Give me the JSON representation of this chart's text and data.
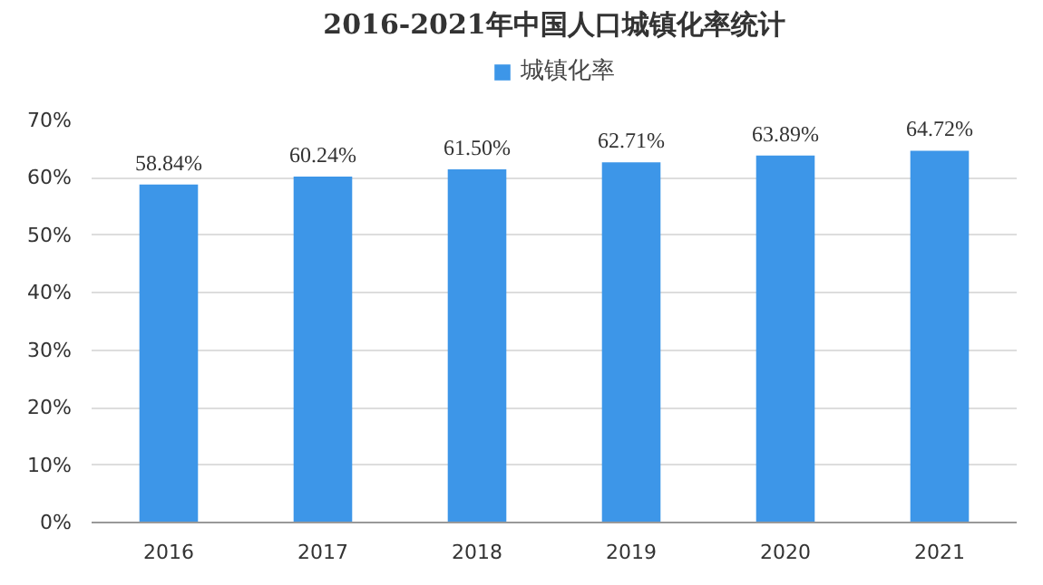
{
  "chart_data": {
    "type": "bar",
    "title": "2016-2021年中国人口城镇化率统计",
    "categories": [
      "2016",
      "2017",
      "2018",
      "2019",
      "2020",
      "2021"
    ],
    "series": [
      {
        "name": "城镇化率",
        "color": "#3d96e8",
        "values": [
          58.84,
          60.24,
          61.5,
          62.71,
          63.89,
          64.72
        ],
        "value_labels": [
          "58.84%",
          "60.24%",
          "61.50%",
          "62.71%",
          "63.89%",
          "64.72%"
        ]
      }
    ],
    "ylim": [
      0,
      70
    ],
    "yticks": [
      {
        "value": 0,
        "label": "0%"
      },
      {
        "value": 10,
        "label": "10%"
      },
      {
        "value": 20,
        "label": "20%"
      },
      {
        "value": 30,
        "label": "30%"
      },
      {
        "value": 40,
        "label": "40%"
      },
      {
        "value": 50,
        "label": "50%"
      },
      {
        "value": 60,
        "label": "60%"
      },
      {
        "value": 70,
        "label": "70%"
      }
    ],
    "grid": "y",
    "legend": "top"
  }
}
